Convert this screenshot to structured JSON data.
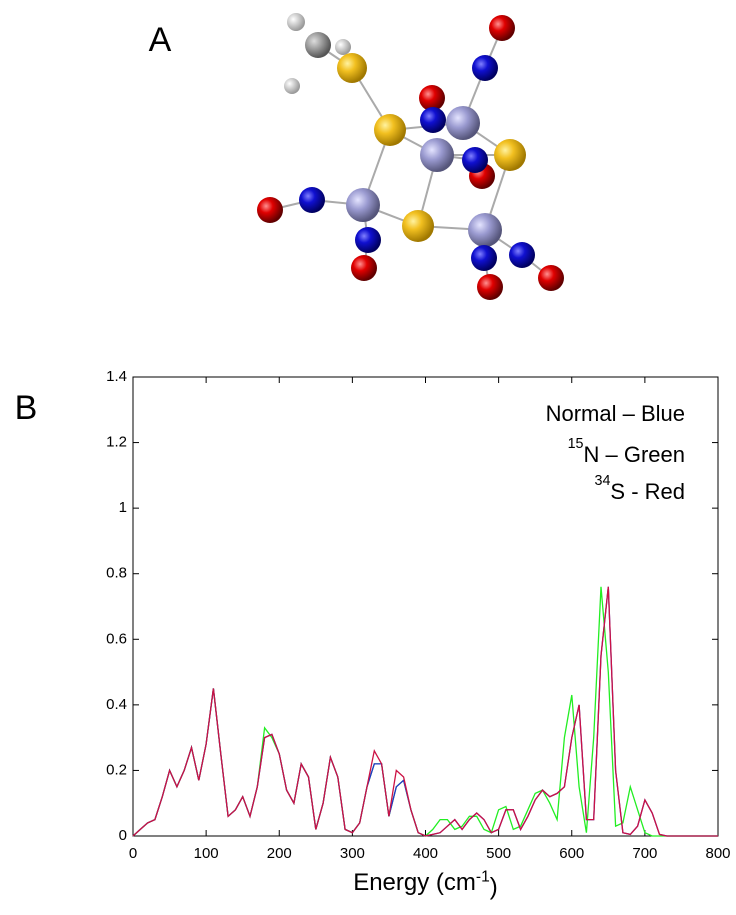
{
  "figure": {
    "panel_a_label": "A",
    "panel_b_label": "B"
  },
  "chart_data": {
    "type": "line",
    "xlabel": "Energy (cm-1)",
    "xlim": [
      0,
      800
    ],
    "xticks": [
      0,
      100,
      200,
      300,
      400,
      500,
      600,
      700,
      800
    ],
    "ylim": [
      0,
      1.4
    ],
    "yticks": [
      0,
      0.2,
      0.4,
      0.6,
      0.8,
      1,
      1.2,
      1.4
    ],
    "legend": "upper right",
    "x": [
      0,
      10,
      20,
      30,
      40,
      50,
      60,
      70,
      80,
      90,
      100,
      110,
      120,
      130,
      140,
      150,
      160,
      170,
      180,
      190,
      200,
      210,
      220,
      230,
      240,
      250,
      260,
      270,
      280,
      290,
      300,
      310,
      320,
      330,
      340,
      350,
      360,
      370,
      380,
      390,
      400,
      410,
      420,
      430,
      440,
      450,
      460,
      470,
      480,
      490,
      500,
      510,
      520,
      530,
      540,
      550,
      560,
      570,
      580,
      590,
      600,
      610,
      620,
      630,
      640,
      650,
      660,
      670,
      680,
      690,
      700,
      710,
      720,
      730,
      740,
      750,
      760,
      770,
      780,
      790,
      800
    ],
    "series": [
      {
        "name": "Normal – Blue",
        "color": "#2233cc",
        "values": [
          0,
          0.02,
          0.04,
          0.05,
          0.12,
          0.2,
          0.15,
          0.2,
          0.27,
          0.17,
          0.28,
          0.45,
          0.25,
          0.06,
          0.08,
          0.12,
          0.06,
          0.15,
          0.3,
          0.31,
          0.25,
          0.14,
          0.1,
          0.22,
          0.18,
          0.02,
          0.1,
          0.24,
          0.18,
          0.02,
          0.01,
          0.04,
          0.15,
          0.22,
          0.22,
          0.06,
          0.15,
          0.17,
          0.08,
          0.01,
          0,
          0.005,
          0.01,
          0.03,
          0.05,
          0.02,
          0.05,
          0.07,
          0.05,
          0.01,
          0.02,
          0.08,
          0.08,
          0.02,
          0.06,
          0.11,
          0.14,
          0.12,
          0.13,
          0.15,
          0.3,
          0.4,
          0.05,
          0.05,
          0.55,
          0.76,
          0.2,
          0.01,
          0.005,
          0.03,
          0.11,
          0.07,
          0.005,
          0,
          0,
          0,
          0,
          0,
          0,
          0,
          0
        ]
      },
      {
        "name": "15N – Green",
        "color": "#22ee22",
        "values": [
          0,
          0.02,
          0.04,
          0.05,
          0.12,
          0.2,
          0.15,
          0.2,
          0.27,
          0.17,
          0.28,
          0.45,
          0.25,
          0.06,
          0.08,
          0.12,
          0.06,
          0.15,
          0.33,
          0.3,
          0.25,
          0.14,
          0.1,
          0.22,
          0.18,
          0.02,
          0.1,
          0.24,
          0.18,
          0.02,
          0.01,
          0.04,
          0.15,
          0.22,
          0.22,
          0.06,
          0.15,
          0.17,
          0.08,
          0.01,
          0,
          0.02,
          0.05,
          0.05,
          0.02,
          0.03,
          0.06,
          0.06,
          0.02,
          0.01,
          0.08,
          0.09,
          0.02,
          0.03,
          0.08,
          0.13,
          0.14,
          0.1,
          0.05,
          0.3,
          0.43,
          0.15,
          0.01,
          0.3,
          0.76,
          0.5,
          0.03,
          0.04,
          0.15,
          0.08,
          0.01,
          0,
          0,
          0,
          0,
          0,
          0,
          0,
          0,
          0,
          0
        ]
      },
      {
        "name": "34S - Red",
        "color": "#cc1144",
        "values": [
          0,
          0.02,
          0.04,
          0.05,
          0.12,
          0.2,
          0.15,
          0.2,
          0.27,
          0.17,
          0.28,
          0.45,
          0.25,
          0.06,
          0.08,
          0.12,
          0.06,
          0.15,
          0.3,
          0.31,
          0.25,
          0.14,
          0.1,
          0.22,
          0.18,
          0.02,
          0.1,
          0.24,
          0.18,
          0.02,
          0.01,
          0.04,
          0.15,
          0.26,
          0.22,
          0.06,
          0.2,
          0.18,
          0.08,
          0.01,
          0,
          0.005,
          0.01,
          0.03,
          0.05,
          0.02,
          0.05,
          0.07,
          0.05,
          0.01,
          0.02,
          0.08,
          0.08,
          0.02,
          0.06,
          0.11,
          0.14,
          0.12,
          0.13,
          0.15,
          0.3,
          0.4,
          0.05,
          0.05,
          0.55,
          0.76,
          0.2,
          0.01,
          0.005,
          0.03,
          0.11,
          0.07,
          0.005,
          0,
          0,
          0,
          0,
          0,
          0,
          0,
          0
        ]
      }
    ]
  }
}
